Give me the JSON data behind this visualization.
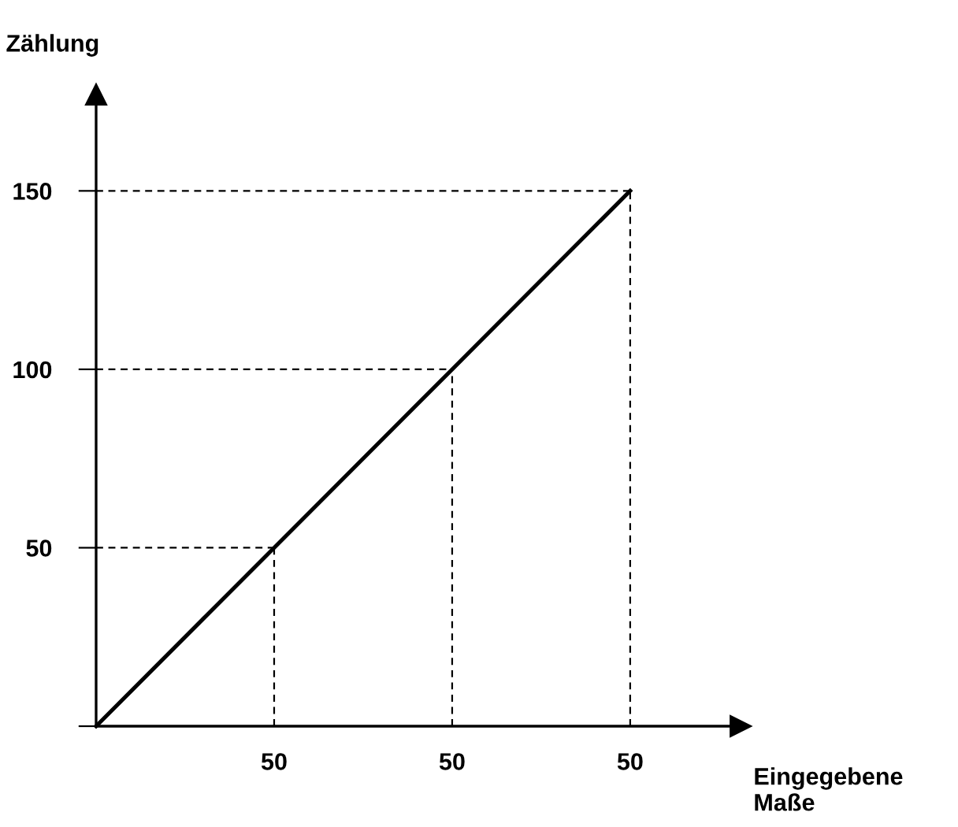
{
  "chart_data": {
    "type": "line",
    "ylabel": "Zählung",
    "xlabel": "Eingegebene Maße",
    "categories": [
      null,
      "50",
      "50",
      "50"
    ],
    "ylim": [
      0,
      177
    ],
    "yticks": [
      {
        "value": 0,
        "label": null
      },
      50,
      100,
      150
    ],
    "grid": false,
    "legend": false,
    "marker": "none",
    "series": [
      {
        "color": "#000000",
        "line_style": "solid",
        "values": [
          0,
          50,
          100,
          150
        ],
        "errors": [
          null,
          [
            0,
            50
          ],
          [
            0,
            100
          ],
          [
            0,
            150
          ]
        ]
      },
      {
        "color": "#000000",
        "line_style": "dashed",
        "values": [
          50,
          50,
          null,
          null
        ]
      },
      {
        "color": "#000000",
        "line_style": "dashed",
        "values": [
          100,
          100,
          100,
          null
        ]
      },
      {
        "color": "#000000",
        "line_style": "dashed",
        "values": [
          150,
          150,
          150,
          150
        ]
      }
    ]
  }
}
